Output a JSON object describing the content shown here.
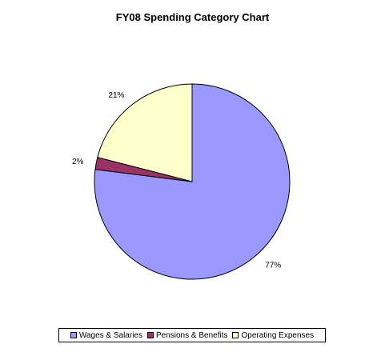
{
  "chart_data": {
    "type": "pie",
    "title": "FY08 Spending Category Chart",
    "slices": [
      {
        "label": "Wages & Salaries",
        "value": 77,
        "display": "77%",
        "color": "#9999ff"
      },
      {
        "label": "Pensions & Benefits",
        "value": 2,
        "display": "2%",
        "color": "#993366"
      },
      {
        "label": "Operating Expenses",
        "value": 21,
        "display": "21%",
        "color": "#ffffcc"
      }
    ],
    "start_angle_deg": 0,
    "direction": "clockwise",
    "legend_position": "bottom"
  }
}
